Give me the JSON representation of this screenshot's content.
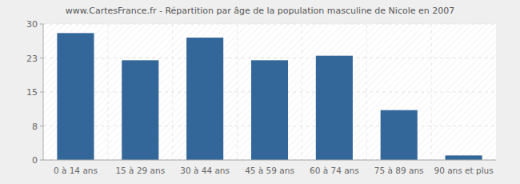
{
  "chart_data": {
    "type": "bar",
    "title": "www.CartesFrance.fr - Répartition par âge de la population masculine de Nicole en 2007",
    "categories": [
      "0 à 14 ans",
      "15 à 29 ans",
      "30 à 44 ans",
      "45 à 59 ans",
      "60 à 74 ans",
      "75 à 89 ans",
      "90 ans et plus"
    ],
    "values": [
      28,
      22,
      27,
      22,
      23,
      11,
      1
    ],
    "color": "#336699",
    "ylim": [
      0,
      30
    ],
    "yticks": [
      0,
      {
        "value": 7.5,
        "label": "8"
      },
      15,
      {
        "value": 22.5,
        "label": "23"
      },
      30
    ],
    "grid": true
  }
}
